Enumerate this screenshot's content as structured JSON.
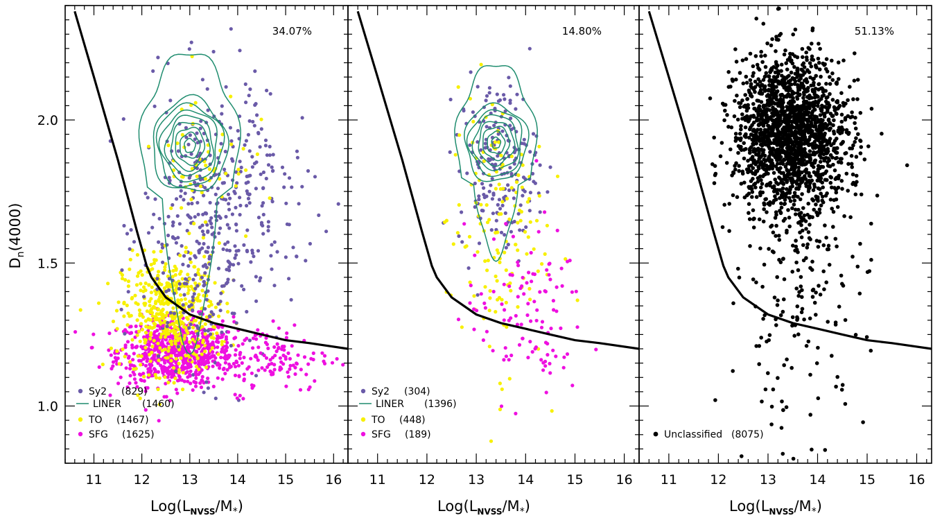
{
  "chart_data": {
    "type": "scatter",
    "ylabel": "D_n(4000)",
    "ylabel_main": "D",
    "ylabel_sub": "n",
    "ylabel_tail": "(4000)",
    "xlabel": "Log(L_NVSS/M_*)",
    "xlabel_parts": {
      "pre": "Log(L",
      "sub1": "NVSS",
      "mid": "/M",
      "sub2": "*",
      "post": ")"
    },
    "xlim": [
      10.4,
      16.3
    ],
    "ylim": [
      0.8,
      2.4
    ],
    "x_ticks": [
      "11",
      "12",
      "13",
      "14",
      "15",
      "16"
    ],
    "y_ticks": [
      "1.0",
      "1.5",
      "2.0"
    ],
    "division_line": [
      [
        10.6,
        2.38
      ],
      [
        11.0,
        2.15
      ],
      [
        11.5,
        1.86
      ],
      [
        11.9,
        1.61
      ],
      [
        12.1,
        1.49
      ],
      [
        12.2,
        1.45
      ],
      [
        12.5,
        1.38
      ],
      [
        13.0,
        1.32
      ],
      [
        13.5,
        1.29
      ],
      [
        14.0,
        1.27
      ],
      [
        14.5,
        1.25
      ],
      [
        15.0,
        1.23
      ],
      [
        15.5,
        1.22
      ],
      [
        16.3,
        1.2
      ]
    ],
    "colors": {
      "Sy2": "#6a5aa8",
      "LINER": "#1e8c6e",
      "TO": "#f7f000",
      "SFG": "#ee10e0",
      "Unclassified": "#000000"
    },
    "panels": [
      {
        "percentage": "34.07%",
        "legend": [
          {
            "key": "Sy2",
            "label": "Sy2",
            "count": "(829)",
            "style": "dot"
          },
          {
            "key": "LINER",
            "label": "LINER",
            "count": "(1460)",
            "style": "line"
          },
          {
            "key": "TO",
            "label": "TO",
            "count": "(1467)",
            "style": "dot"
          },
          {
            "key": "SFG",
            "label": "SFG",
            "count": "(1625)",
            "style": "dot"
          }
        ],
        "points": [
          {
            "cls": "SFG",
            "n": 700,
            "cx": 12.7,
            "cy": 1.19,
            "sx": 0.6,
            "sy": 0.06
          },
          {
            "cls": "TO",
            "n": 500,
            "cx": 12.6,
            "cy": 1.32,
            "sx": 0.5,
            "sy": 0.1
          },
          {
            "cls": "Sy2",
            "n": 380,
            "cx": 13.3,
            "cy": 1.62,
            "sx": 0.65,
            "sy": 0.24
          },
          {
            "cls": "SFG",
            "n": 160,
            "cx": 14.4,
            "cy": 1.17,
            "sx": 0.8,
            "sy": 0.06
          },
          {
            "cls": "Sy2",
            "n": 90,
            "cx": 14.6,
            "cy": 1.75,
            "sx": 0.7,
            "sy": 0.2
          },
          {
            "cls": "TO",
            "n": 60,
            "cx": 13.3,
            "cy": 1.85,
            "sx": 0.5,
            "sy": 0.15
          }
        ],
        "contours": {
          "center": [
            13.0,
            1.91
          ],
          "rx": 0.95,
          "ry": 0.2,
          "levels": [
            0.12,
            0.22,
            0.32,
            0.42,
            0.52,
            0.62,
            0.72,
            0.82
          ],
          "ry_outer": 0.32,
          "tail": true
        }
      },
      {
        "percentage": "14.80%",
        "legend": [
          {
            "key": "Sy2",
            "label": "Sy2",
            "count": "(304)",
            "style": "dot"
          },
          {
            "key": "LINER",
            "label": "LINER",
            "count": "(1396)",
            "style": "line"
          },
          {
            "key": "TO",
            "label": "TO",
            "count": "(448)",
            "style": "dot"
          },
          {
            "key": "SFG",
            "label": "SFG",
            "count": "(189)",
            "style": "dot"
          }
        ],
        "points": [
          {
            "cls": "Sy2",
            "n": 200,
            "cx": 13.45,
            "cy": 1.84,
            "sx": 0.4,
            "sy": 0.15
          },
          {
            "cls": "TO",
            "n": 140,
            "cx": 13.4,
            "cy": 1.62,
            "sx": 0.5,
            "sy": 0.25
          },
          {
            "cls": "SFG",
            "n": 110,
            "cx": 14.0,
            "cy": 1.32,
            "sx": 0.6,
            "sy": 0.15
          }
        ],
        "contours": {
          "center": [
            13.4,
            1.92
          ],
          "rx": 0.75,
          "ry": 0.16,
          "levels": [
            0.12,
            0.24,
            0.36,
            0.48,
            0.6,
            0.72,
            0.84
          ],
          "ry_outer": 0.27,
          "tail": false
        }
      },
      {
        "percentage": "51.13%",
        "legend": [
          {
            "key": "Unclassified",
            "label": "Unclassified",
            "count": "(8075)",
            "style": "dot"
          }
        ],
        "points": [
          {
            "cls": "Unclassified",
            "n": 1700,
            "cx": 13.45,
            "cy": 1.96,
            "sx": 0.55,
            "sy": 0.13
          },
          {
            "cls": "Unclassified",
            "n": 300,
            "cx": 13.6,
            "cy": 1.55,
            "sx": 0.7,
            "sy": 0.3
          }
        ],
        "contours": null
      }
    ]
  }
}
